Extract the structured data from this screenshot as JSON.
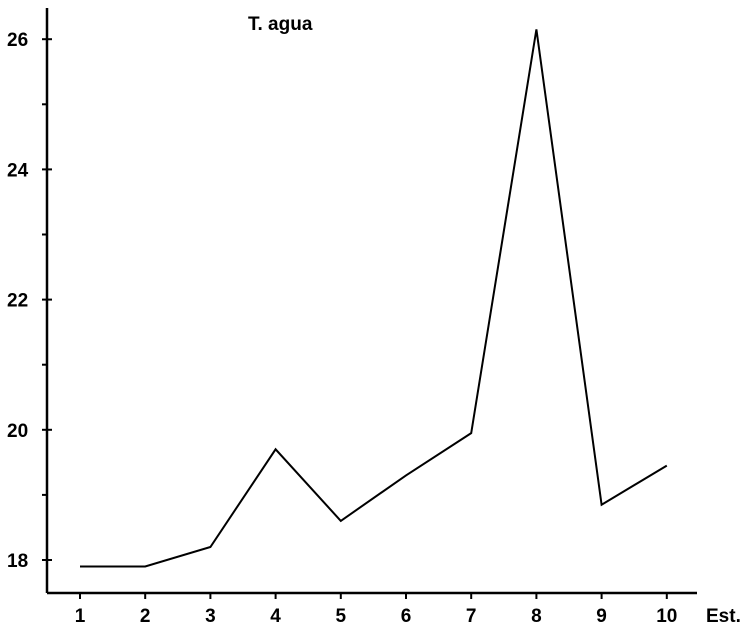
{
  "chart_data": {
    "type": "line",
    "title": "T. agua",
    "xlabel": "Est.",
    "ylabel": "",
    "x": [
      1,
      2,
      3,
      4,
      5,
      6,
      7,
      8,
      9,
      10
    ],
    "x_tick_labels": [
      "1",
      "2",
      "3",
      "4",
      "5",
      "6",
      "7",
      "8",
      "9",
      "10"
    ],
    "y_tick_labels": [
      "18",
      "20",
      "22",
      "24",
      "26"
    ],
    "y_ticks_major": [
      18,
      20,
      22,
      24,
      26
    ],
    "y_ticks_minor": [
      19,
      21,
      23,
      25
    ],
    "series": [
      {
        "values": [
          17.9,
          17.9,
          18.2,
          19.7,
          18.6,
          19.3,
          19.95,
          26.15,
          18.85,
          19.45
        ]
      }
    ],
    "xlim": [
      0.5,
      10.5
    ],
    "ylim": [
      17.5,
      26.5
    ],
    "grid": false,
    "legend": "none"
  }
}
